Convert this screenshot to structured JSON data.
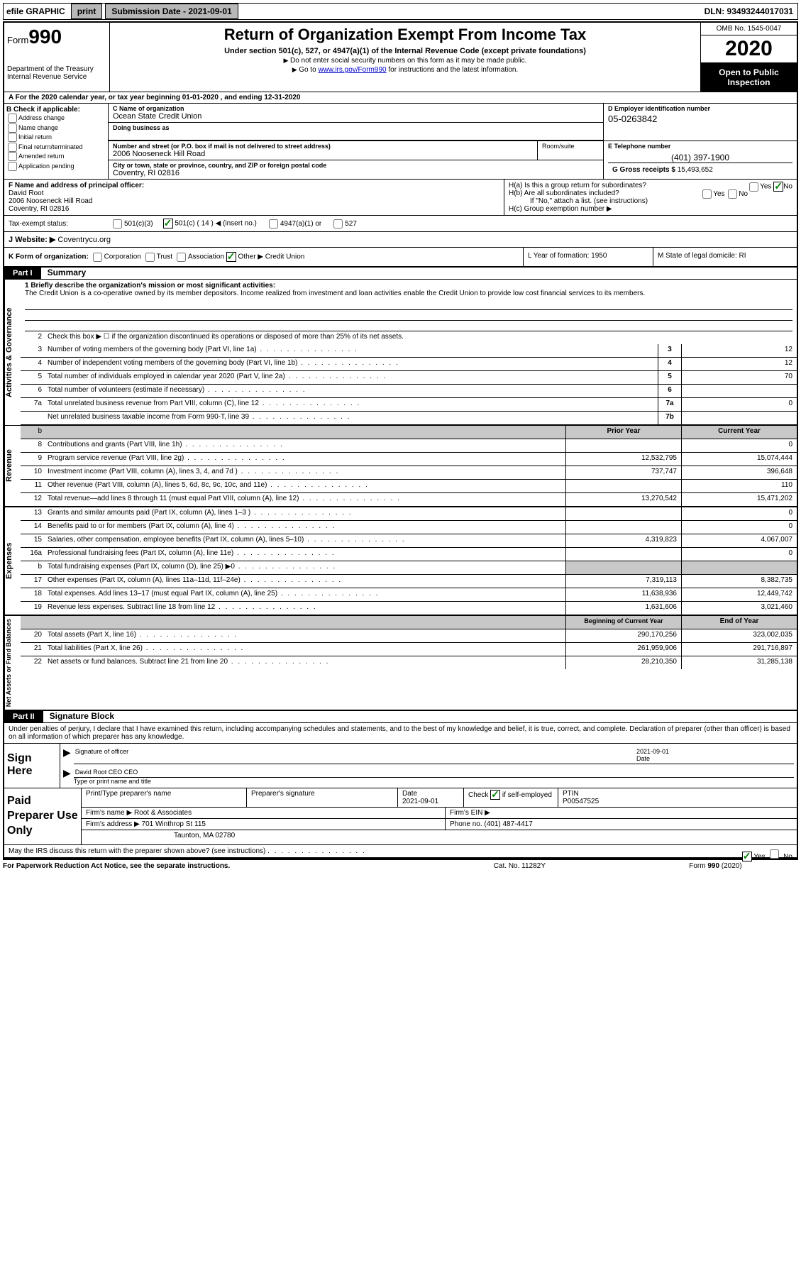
{
  "topbar": {
    "efile_label": "efile GRAPHIC",
    "print_btn": "print",
    "submission_label": "Submission Date - 2021-09-01",
    "dln": "DLN: 93493244017031"
  },
  "header": {
    "form_prefix": "Form",
    "form_number": "990",
    "dept1": "Department of the Treasury",
    "dept2": "Internal Revenue Service",
    "title": "Return of Organization Exempt From Income Tax",
    "sub": "Under section 501(c), 527, or 4947(a)(1) of the Internal Revenue Code (except private foundations)",
    "note1": "Do not enter social security numbers on this form as it may be made public.",
    "note2_pre": "Go to ",
    "note2_link": "www.irs.gov/Form990",
    "note2_post": " for instructions and the latest information.",
    "omb": "OMB No. 1545-0047",
    "year": "2020",
    "inspect1": "Open to Public",
    "inspect2": "Inspection"
  },
  "rowA": "A For the 2020 calendar year, or tax year beginning 01-01-2020   , and ending 12-31-2020",
  "checkB": {
    "header": "B Check if applicable:",
    "items": [
      "Address change",
      "Name change",
      "Initial return",
      "Final return/terminated",
      "Amended return",
      "Application pending"
    ]
  },
  "org": {
    "name_label": "C Name of organization",
    "name": "Ocean State Credit Union",
    "dba_label": "Doing business as",
    "street_label": "Number and street (or P.O. box if mail is not delivered to street address)",
    "street": "2006 Nooseneck Hill Road",
    "room_label": "Room/suite",
    "city_label": "City or town, state or province, country, and ZIP or foreign postal code",
    "city": "Coventry, RI  02816",
    "ein_label": "D Employer identification number",
    "ein": "05-0263842",
    "tel_label": "E Telephone number",
    "tel": "(401) 397-1900",
    "gross_label": "G Gross receipts $ ",
    "gross": "15,493,652"
  },
  "officer": {
    "label": "F  Name and address of principal officer:",
    "name": "David Root",
    "addr1": "2006 Nooseneck Hill Road",
    "addr2": "Coventry, RI  02816"
  },
  "groupH": {
    "ha": "H(a)  Is this a group return for subordinates?",
    "hb": "H(b)  Are all subordinates included?",
    "hb_note": "If \"No,\" attach a list. (see instructions)",
    "hc": "H(c)  Group exemption number ▶",
    "yes": "Yes",
    "no": "No"
  },
  "taxStatus": {
    "label": "Tax-exempt status:",
    "opt1": "501(c)(3)",
    "opt2": "501(c) ( 14 ) ◀ (insert no.)",
    "opt3": "4947(a)(1) or",
    "opt4": "527"
  },
  "website": {
    "label": "J Website: ▶",
    "val": " Coventrycu.org"
  },
  "klm": {
    "k_label": "K Form of organization:",
    "k_opts": [
      "Corporation",
      "Trust",
      "Association",
      "Other ▶"
    ],
    "k_other": "Credit Union",
    "l": "L Year of formation: 1950",
    "m": "M State of legal domicile: RI"
  },
  "parts": {
    "p1": "Part I",
    "p1_title": "Summary",
    "p2": "Part II",
    "p2_title": "Signature Block"
  },
  "vtabs": {
    "ag": "Activities & Governance",
    "rev": "Revenue",
    "exp": "Expenses",
    "nab": "Net Assets or\nFund Balances"
  },
  "summary": {
    "line1_label": "1  Briefly describe the organization's mission or most significant activities:",
    "mission": "The Credit Union is a co-operative owned by its member depositors. Income realized from investment and loan activities enable the Credit Union to provide low cost financial services to its members.",
    "line2": "Check this box ▶ ☐  if the organization discontinued its operations or disposed of more than 25% of its net assets.",
    "rows_ag": [
      {
        "n": "3",
        "t": "Number of voting members of the governing body (Part VI, line 1a)",
        "box": "3",
        "v": "12"
      },
      {
        "n": "4",
        "t": "Number of independent voting members of the governing body (Part VI, line 1b)",
        "box": "4",
        "v": "12"
      },
      {
        "n": "5",
        "t": "Total number of individuals employed in calendar year 2020 (Part V, line 2a)",
        "box": "5",
        "v": "70"
      },
      {
        "n": "6",
        "t": "Total number of volunteers (estimate if necessary)",
        "box": "6",
        "v": ""
      },
      {
        "n": "7a",
        "t": "Total unrelated business revenue from Part VIII, column (C), line 12",
        "box": "7a",
        "v": "0"
      },
      {
        "n": "",
        "t": "Net unrelated business taxable income from Form 990-T, line 39",
        "box": "7b",
        "v": ""
      }
    ],
    "col_prior": "Prior Year",
    "col_curr": "Current Year",
    "rows_rev": [
      {
        "n": "8",
        "t": "Contributions and grants (Part VIII, line 1h)",
        "p": "",
        "c": "0"
      },
      {
        "n": "9",
        "t": "Program service revenue (Part VIII, line 2g)",
        "p": "12,532,795",
        "c": "15,074,444"
      },
      {
        "n": "10",
        "t": "Investment income (Part VIII, column (A), lines 3, 4, and 7d )",
        "p": "737,747",
        "c": "396,648"
      },
      {
        "n": "11",
        "t": "Other revenue (Part VIII, column (A), lines 5, 6d, 8c, 9c, 10c, and 11e)",
        "p": "",
        "c": "110"
      },
      {
        "n": "12",
        "t": "Total revenue—add lines 8 through 11 (must equal Part VIII, column (A), line 12)",
        "p": "13,270,542",
        "c": "15,471,202"
      }
    ],
    "rows_exp": [
      {
        "n": "13",
        "t": "Grants and similar amounts paid (Part IX, column (A), lines 1–3 )",
        "p": "",
        "c": "0"
      },
      {
        "n": "14",
        "t": "Benefits paid to or for members (Part IX, column (A), line 4)",
        "p": "",
        "c": "0"
      },
      {
        "n": "15",
        "t": "Salaries, other compensation, employee benefits (Part IX, column (A), lines 5–10)",
        "p": "4,319,823",
        "c": "4,067,007"
      },
      {
        "n": "16a",
        "t": "Professional fundraising fees (Part IX, column (A), line 11e)",
        "p": "",
        "c": "0"
      },
      {
        "n": "b",
        "t": "Total fundraising expenses (Part IX, column (D), line 25) ▶0",
        "p": "GREY",
        "c": "GREY"
      },
      {
        "n": "17",
        "t": "Other expenses (Part IX, column (A), lines 11a–11d, 11f–24e)",
        "p": "7,319,113",
        "c": "8,382,735"
      },
      {
        "n": "18",
        "t": "Total expenses. Add lines 13–17 (must equal Part IX, column (A), line 25)",
        "p": "11,638,936",
        "c": "12,449,742"
      },
      {
        "n": "19",
        "t": "Revenue less expenses. Subtract line 18 from line 12",
        "p": "1,631,606",
        "c": "3,021,460"
      }
    ],
    "col_beg": "Beginning of Current Year",
    "col_end": "End of Year",
    "rows_nab": [
      {
        "n": "20",
        "t": "Total assets (Part X, line 16)",
        "p": "290,170,256",
        "c": "323,002,035"
      },
      {
        "n": "21",
        "t": "Total liabilities (Part X, line 26)",
        "p": "261,959,906",
        "c": "291,716,897"
      },
      {
        "n": "22",
        "t": "Net assets or fund balances. Subtract line 21 from line 20",
        "p": "28,210,350",
        "c": "31,285,138"
      }
    ]
  },
  "penalties": "Under penalties of perjury, I declare that I have examined this return, including accompanying schedules and statements, and to the best of my knowledge and belief, it is true, correct, and complete. Declaration of preparer (other than officer) is based on all information of which preparer has any knowledge.",
  "sign": {
    "label": "Sign Here",
    "sig_label": "Signature of officer",
    "date_label": "Date",
    "date": "2021-09-01",
    "name": "David Root CEO  CEO",
    "name_label": "Type or print name and title"
  },
  "preparer": {
    "label": "Paid Preparer Use Only",
    "print_name_label": "Print/Type preparer's name",
    "sig_label": "Preparer's signature",
    "date_label": "Date",
    "date": "2021-09-01",
    "self_emp": "Check ☑ if self-employed",
    "ptin_label": "PTIN",
    "ptin": "P00547525",
    "firm_name_label": "Firm's name    ▶",
    "firm_name": "Root & Associates",
    "firm_ein_label": "Firm's EIN ▶",
    "firm_addr_label": "Firm's address ▶",
    "firm_addr1": "701 Winthrop St 115",
    "firm_addr2": "Taunton, MA  02780",
    "phone_label": "Phone no. (401) 487-4417",
    "discuss": "May the IRS discuss this return with the preparer shown above? (see instructions)",
    "yes": "Yes",
    "no": "No"
  },
  "footer": {
    "left": "For Paperwork Reduction Act Notice, see the separate instructions.",
    "mid": "Cat. No. 11282Y",
    "right": "Form 990 (2020)"
  }
}
